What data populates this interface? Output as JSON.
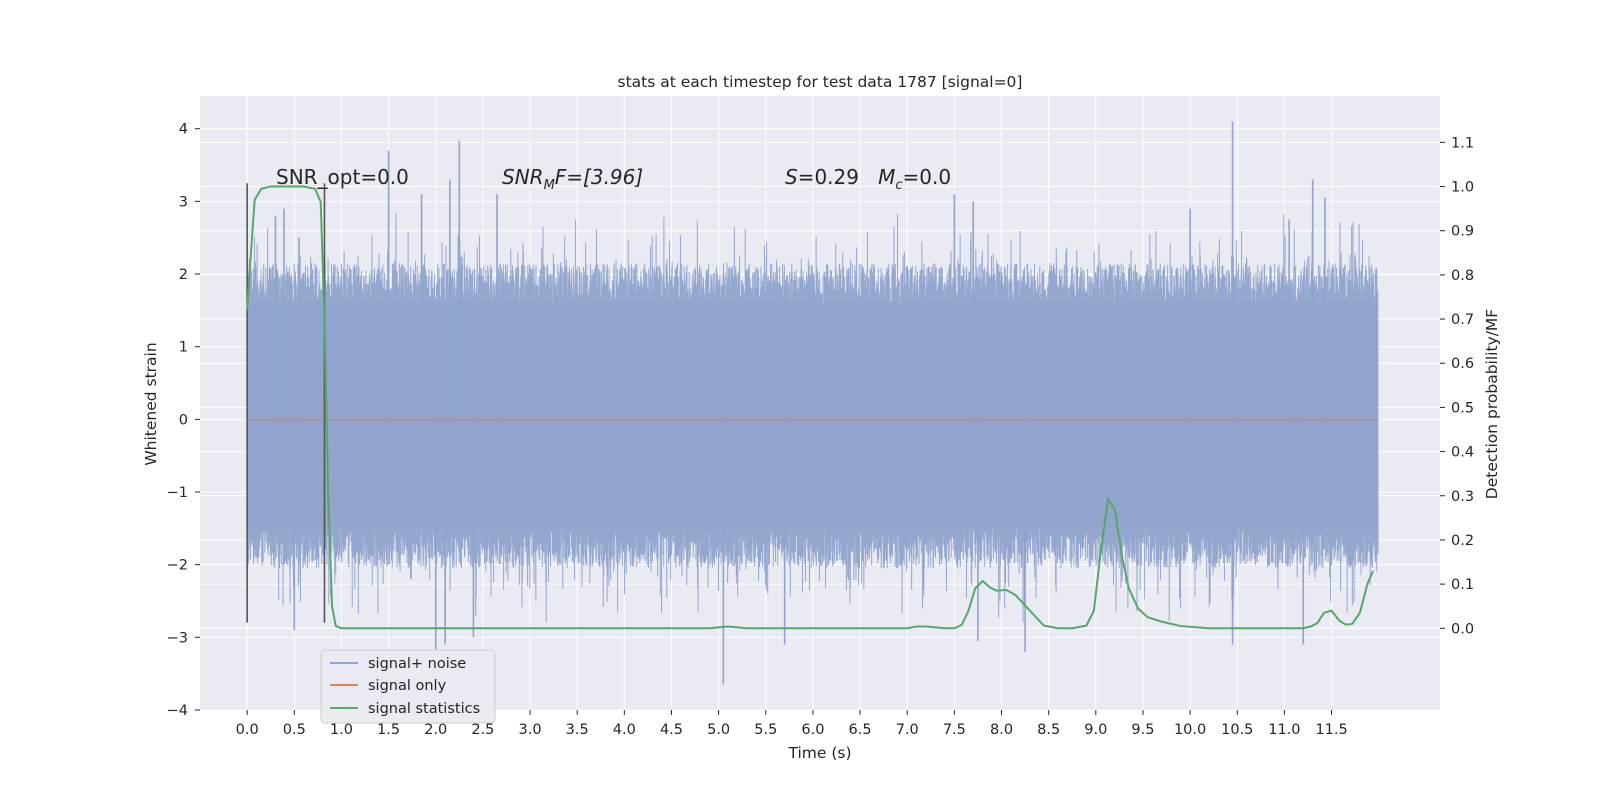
{
  "chart_data": {
    "type": "line",
    "title": "stats at each timestep for test data 1787 [signal=0]",
    "xlabel": "Time (s)",
    "ylabel": "Whitened strain",
    "y2label": "Detection probability/MF",
    "xlim": [
      -0.5,
      12.65
    ],
    "ylim": [
      -4,
      4.45
    ],
    "y2lim": [
      -0.185,
      1.205
    ],
    "x_ticks": [
      "0.0",
      "0.5",
      "1.0",
      "1.5",
      "2.0",
      "2.5",
      "3.0",
      "3.5",
      "4.0",
      "4.5",
      "5.0",
      "5.5",
      "6.0",
      "6.5",
      "7.0",
      "7.5",
      "8.0",
      "8.5",
      "9.0",
      "9.5",
      "10.0",
      "10.5",
      "11.0",
      "11.5"
    ],
    "y_ticks": [
      "4",
      "3",
      "2",
      "1",
      "0",
      "−1",
      "−2",
      "−3",
      "−4"
    ],
    "y2_ticks": [
      "1.1",
      "1.0",
      "0.9",
      "0.8",
      "0.7",
      "0.6",
      "0.5",
      "0.4",
      "0.3",
      "0.2",
      "0.1",
      "0.0"
    ],
    "grid": true,
    "legend": {
      "position": "lower-left",
      "entries": [
        "signal+ noise",
        "signal only",
        "signal statistics"
      ]
    },
    "colors": {
      "signal_noise": "#8fa3cc",
      "signal_only": "#dd8452",
      "signal_statistics": "#55a868",
      "background": "#eaeaf2",
      "grid": "#ffffff",
      "markers": "#555555"
    },
    "annotations": [
      {
        "text": "SNR_opt=0.0"
      },
      {
        "text": "SNR_MF=[3.96]",
        "math_parts": [
          "SNR",
          "M",
          "F=[3.96]"
        ]
      },
      {
        "text": "S=0.29   M_c=0.0",
        "math_parts": [
          "S",
          "=0.29   ",
          "M",
          "c",
          "=0.0"
        ]
      }
    ],
    "vertical_markers": [
      {
        "x": 0.0,
        "y_range": [
          -2.8,
          3.25
        ]
      },
      {
        "x": 0.82,
        "y_range": [
          -2.8,
          3.25
        ]
      }
    ],
    "series": [
      {
        "name": "signal+ noise",
        "kind": "noise_band",
        "x_range": [
          0.0,
          11.99
        ],
        "band": [
          -1.5,
          1.6
        ],
        "upper_peaks": [
          {
            "x": 0.3,
            "y": 2.8
          },
          {
            "x": 0.39,
            "y": 2.9
          },
          {
            "x": 0.55,
            "y": 2.5
          },
          {
            "x": 1.5,
            "y": 3.7
          },
          {
            "x": 1.85,
            "y": 3.1
          },
          {
            "x": 2.25,
            "y": 3.83
          },
          {
            "x": 2.15,
            "y": 3.3
          },
          {
            "x": 2.65,
            "y": 3.1
          },
          {
            "x": 7.5,
            "y": 3.1
          },
          {
            "x": 7.7,
            "y": 3.0
          },
          {
            "x": 10.45,
            "y": 4.1
          },
          {
            "x": 10.0,
            "y": 2.9
          },
          {
            "x": 11.3,
            "y": 3.3
          },
          {
            "x": 11.43,
            "y": 3.05
          },
          {
            "x": 11.05,
            "y": 2.75
          }
        ],
        "lower_peaks": [
          {
            "x": 0.5,
            "y": -2.9
          },
          {
            "x": 2.0,
            "y": -3.2
          },
          {
            "x": 2.1,
            "y": -3.1
          },
          {
            "x": 5.05,
            "y": -3.65
          },
          {
            "x": 5.7,
            "y": -3.1
          },
          {
            "x": 7.75,
            "y": -3.05
          },
          {
            "x": 8.25,
            "y": -3.2
          },
          {
            "x": 10.45,
            "y": -3.1
          },
          {
            "x": 11.2,
            "y": -3.1
          },
          {
            "x": 2.4,
            "y": -3.0
          }
        ]
      },
      {
        "name": "signal only",
        "x": [
          0.0,
          11.99
        ],
        "y": [
          0.0,
          0.0
        ]
      },
      {
        "name": "signal statistics",
        "axis": "right",
        "x": [
          0.0,
          0.03,
          0.08,
          0.15,
          0.25,
          0.4,
          0.6,
          0.72,
          0.78,
          0.82,
          0.86,
          0.9,
          0.94,
          1.0,
          1.5,
          2.0,
          2.5,
          3.0,
          3.5,
          4.0,
          4.5,
          4.9,
          5.1,
          5.3,
          5.6,
          6.0,
          6.5,
          7.0,
          7.1,
          7.2,
          7.4,
          7.5,
          7.58,
          7.65,
          7.72,
          7.8,
          7.88,
          7.95,
          8.05,
          8.15,
          8.3,
          8.45,
          8.6,
          8.75,
          8.9,
          8.98,
          9.05,
          9.13,
          9.2,
          9.28,
          9.35,
          9.45,
          9.55,
          9.7,
          9.9,
          10.2,
          10.5,
          11.0,
          11.2,
          11.28,
          11.35,
          11.42,
          11.5,
          11.58,
          11.65,
          11.72,
          11.8,
          11.88,
          11.94
        ],
        "y": [
          0.72,
          0.82,
          0.97,
          0.995,
          1.0,
          1.0,
          1.0,
          0.995,
          0.965,
          0.7,
          0.3,
          0.05,
          0.005,
          0.0,
          0.0,
          0.0,
          0.0,
          0.0,
          0.0,
          0.0,
          0.0,
          0.0,
          0.004,
          0.0,
          0.0,
          0.0,
          0.0,
          0.0,
          0.004,
          0.004,
          0.0,
          0.0,
          0.008,
          0.04,
          0.09,
          0.107,
          0.092,
          0.085,
          0.087,
          0.075,
          0.04,
          0.006,
          0.0,
          0.0,
          0.006,
          0.04,
          0.17,
          0.292,
          0.27,
          0.16,
          0.09,
          0.044,
          0.025,
          0.015,
          0.005,
          0.0,
          0.0,
          0.0,
          0.0,
          0.004,
          0.012,
          0.035,
          0.04,
          0.018,
          0.008,
          0.01,
          0.035,
          0.1,
          0.13
        ]
      }
    ]
  }
}
